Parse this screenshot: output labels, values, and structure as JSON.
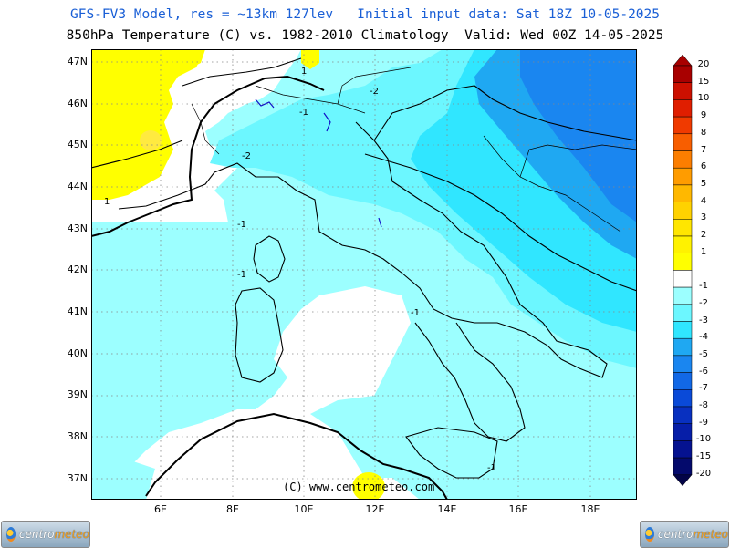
{
  "header": {
    "line1": "GFS-FV3 Model, res = ~13km 127lev   Initial input data: Sat 18Z 10-05-2025",
    "line2": "850hPa Temperature (C) vs. 1982-2010 Climatology  Valid: Wed 00Z 14-05-2025"
  },
  "map": {
    "latitude_labels": [
      "47N",
      "46N",
      "45N",
      "44N",
      "43N",
      "42N",
      "41N",
      "40N",
      "39N",
      "38N",
      "37N"
    ],
    "longitude_labels": [
      "6E",
      "8E",
      "10E",
      "12E",
      "14E",
      "16E",
      "18E"
    ],
    "contour_labels": [
      "1",
      "-2",
      "-1",
      "-2",
      "-1",
      "-1",
      "1",
      "-1",
      "-1"
    ],
    "copyright": "(C) www.centrometeo.com"
  },
  "colorbar": {
    "labels": [
      "20",
      "15",
      "10",
      "9",
      "8",
      "7",
      "6",
      "5",
      "4",
      "3",
      "2",
      "1",
      "-1",
      "-2",
      "-3",
      "-4",
      "-5",
      "-6",
      "-7",
      "-8",
      "-9",
      "-10",
      "-15",
      "-20"
    ],
    "colors": {
      "20": "#a80000",
      "15": "#cc1000",
      "10": "#e01e00",
      "9": "#f03a00",
      "8": "#f85e00",
      "7": "#fc7e00",
      "6": "#ff9c00",
      "5": "#ffb800",
      "4": "#ffd200",
      "3": "#ffe600",
      "2": "#fff200",
      "1": "#ffff00",
      "0": "#ffffff",
      "-1": "#9cffff",
      "-2": "#6cf7ff",
      "-3": "#30e6ff",
      "-4": "#1fa8f2",
      "-5": "#1a86f0",
      "-6": "#1268e6",
      "-7": "#0a4ad8",
      "-8": "#0830c0",
      "-9": "#061ea8",
      "-10": "#051290",
      "-15": "#040a6c",
      "-20": "#030448"
    }
  },
  "logos": {
    "left": {
      "text_a": "centro",
      "text_b": "meteo"
    },
    "right": {
      "text_a": "centro",
      "text_b": "meteo"
    }
  }
}
